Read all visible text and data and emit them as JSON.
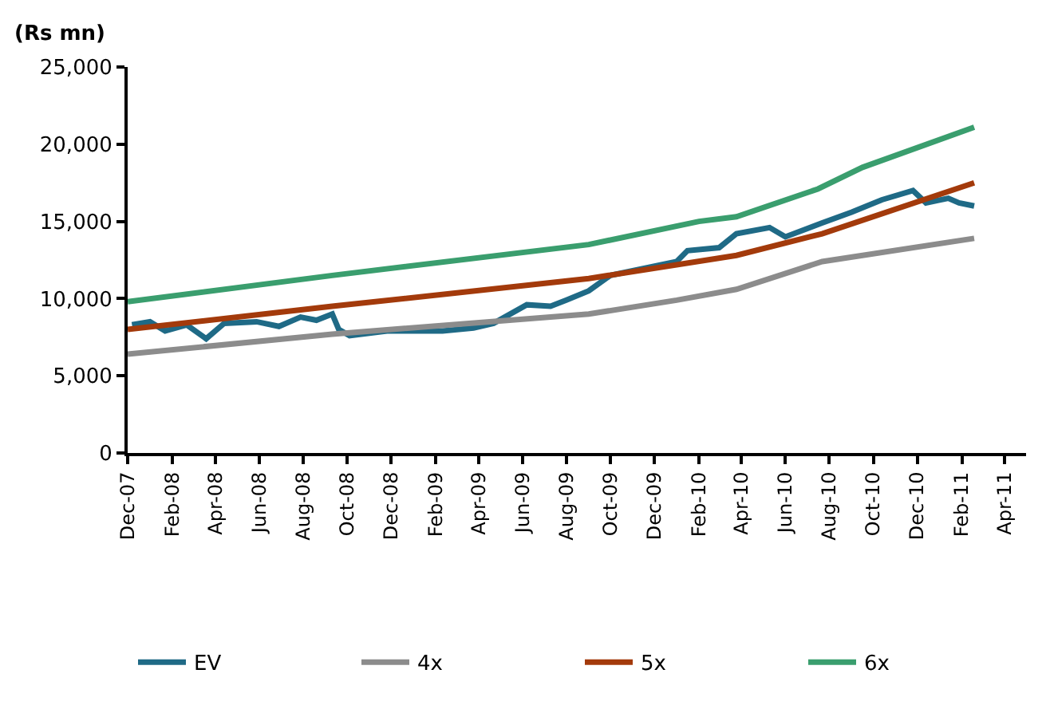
{
  "chart_data": {
    "type": "line",
    "ylabel": "(Rs mn)",
    "xlim": [
      "2007-12-01",
      "2011-05-01"
    ],
    "ylim": [
      0,
      25000
    ],
    "yticks": [
      {
        "value": 0,
        "label": "0"
      },
      {
        "value": 5000,
        "label": "5,000"
      },
      {
        "value": 10000,
        "label": "10,000"
      },
      {
        "value": 15000,
        "label": "15,000"
      },
      {
        "value": 20000,
        "label": "20,000"
      },
      {
        "value": 25000,
        "label": "25,000"
      }
    ],
    "xticks": [
      {
        "value": "2007-12-01",
        "label": "Dec-07"
      },
      {
        "value": "2008-02-01",
        "label": "Feb-08"
      },
      {
        "value": "2008-04-01",
        "label": "Apr-08"
      },
      {
        "value": "2008-06-01",
        "label": "Jun-08"
      },
      {
        "value": "2008-08-01",
        "label": "Aug-08"
      },
      {
        "value": "2008-10-01",
        "label": "Oct-08"
      },
      {
        "value": "2008-12-01",
        "label": "Dec-08"
      },
      {
        "value": "2009-02-01",
        "label": "Feb-09"
      },
      {
        "value": "2009-04-01",
        "label": "Apr-09"
      },
      {
        "value": "2009-06-01",
        "label": "Jun-09"
      },
      {
        "value": "2009-08-01",
        "label": "Aug-09"
      },
      {
        "value": "2009-10-01",
        "label": "Oct-09"
      },
      {
        "value": "2009-12-01",
        "label": "Dec-09"
      },
      {
        "value": "2010-02-01",
        "label": "Feb-10"
      },
      {
        "value": "2010-04-01",
        "label": "Apr-10"
      },
      {
        "value": "2010-06-01",
        "label": "Jun-10"
      },
      {
        "value": "2010-08-01",
        "label": "Aug-10"
      },
      {
        "value": "2010-10-01",
        "label": "Oct-10"
      },
      {
        "value": "2010-12-01",
        "label": "Dec-10"
      },
      {
        "value": "2011-02-01",
        "label": "Feb-11"
      },
      {
        "value": "2011-04-01",
        "label": "Apr-11"
      }
    ],
    "legend": "bottom",
    "marker": "none",
    "line_style": "solid",
    "series": [
      {
        "name": "EV",
        "color": "#1f6a86",
        "x": [
          "2007-12-07",
          "2008-01-01",
          "2008-01-22",
          "2008-02-21",
          "2008-03-19",
          "2008-04-13",
          "2008-05-28",
          "2008-06-28",
          "2008-07-28",
          "2008-08-19",
          "2008-09-10",
          "2008-09-19",
          "2008-10-04",
          "2008-11-25",
          "2009-02-10",
          "2009-03-25",
          "2009-04-22",
          "2009-06-07",
          "2009-07-10",
          "2009-08-01",
          "2009-09-01",
          "2009-10-01",
          "2010-01-01",
          "2010-01-16",
          "2010-03-01",
          "2010-03-25",
          "2010-05-10",
          "2010-06-01",
          "2010-07-22",
          "2010-09-01",
          "2010-10-13",
          "2010-11-25",
          "2010-12-13",
          "2011-01-13",
          "2011-01-28",
          "2011-02-18"
        ],
        "values": [
          8300,
          8500,
          7900,
          8300,
          7400,
          8400,
          8500,
          8200,
          8800,
          8600,
          9000,
          8000,
          7600,
          7900,
          7900,
          8100,
          8400,
          9600,
          9500,
          9900,
          10500,
          11500,
          12400,
          13100,
          13300,
          14200,
          14600,
          14000,
          14900,
          15600,
          16400,
          17000,
          16200,
          16500,
          16200,
          16000
        ]
      },
      {
        "name": "4x",
        "color": "#8c8c8c",
        "x": [
          "2007-12-01",
          "2008-09-10",
          "2009-09-01",
          "2010-01-01",
          "2010-03-25",
          "2010-07-22",
          "2011-02-18"
        ],
        "values": [
          6400,
          7700,
          9000,
          9900,
          10600,
          12400,
          13900
        ]
      },
      {
        "name": "5x",
        "color": "#a33a0b",
        "x": [
          "2007-12-01",
          "2008-09-10",
          "2009-09-01",
          "2010-03-25",
          "2010-07-22",
          "2011-02-18"
        ],
        "values": [
          8000,
          9500,
          11300,
          12800,
          14200,
          17500
        ]
      },
      {
        "name": "6x",
        "color": "#3a9e6e",
        "x": [
          "2007-12-01",
          "2008-09-10",
          "2009-09-01",
          "2010-02-01",
          "2010-03-25",
          "2010-07-16",
          "2010-09-16",
          "2011-02-18"
        ],
        "values": [
          9800,
          11500,
          13500,
          15000,
          15300,
          17100,
          18500,
          21100
        ]
      }
    ]
  }
}
